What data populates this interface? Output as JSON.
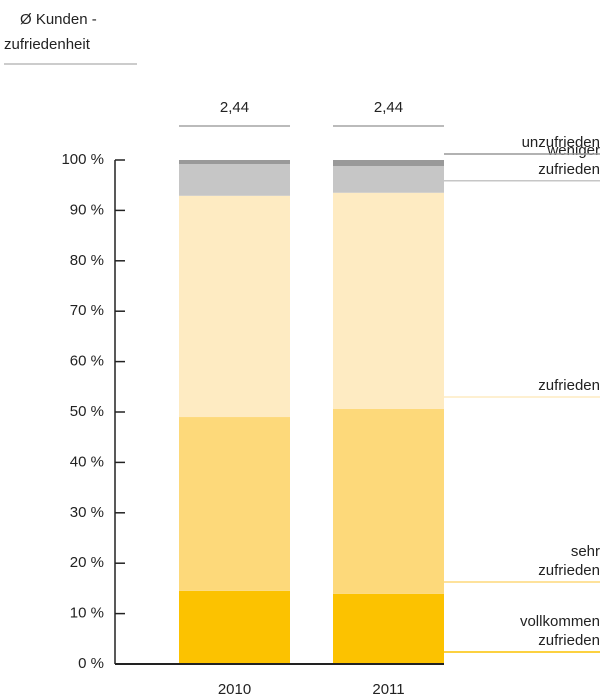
{
  "chart_data": {
    "type": "stacked_bar",
    "title_lines": [
      "Ø Kunden -",
      "zufriedenheit"
    ],
    "categories": [
      "2010",
      "2011"
    ],
    "averages": {
      "values": [
        2.44,
        2.44
      ],
      "value_labels": [
        "2,44",
        "2,44"
      ]
    },
    "series": [
      {
        "name": "vollkommen zufrieden",
        "color": "#fcc200",
        "values": [
          14.5,
          13.9
        ]
      },
      {
        "name": "sehr zufrieden",
        "color": "#fdd97a",
        "values": [
          34.5,
          36.7
        ]
      },
      {
        "name": "zufrieden",
        "color": "#feebc2",
        "values": [
          43.9,
          42.9
        ]
      },
      {
        "name": "weniger zufrieden",
        "color": "#c6c6c6",
        "values": [
          6.3,
          5.3
        ]
      },
      {
        "name": "unzufrieden",
        "color": "#999999",
        "values": [
          0.8,
          1.2
        ]
      }
    ],
    "ylim": [
      0,
      100
    ],
    "yticks": [
      {
        "value": 0,
        "label": "0 %"
      },
      {
        "value": 10,
        "label": "10 %"
      },
      {
        "value": 20,
        "label": "20 %"
      },
      {
        "value": 30,
        "label": "30 %"
      },
      {
        "value": 40,
        "label": "40 %"
      },
      {
        "value": 50,
        "label": "50 %"
      },
      {
        "value": 60,
        "label": "60 %"
      },
      {
        "value": 70,
        "label": "70 %"
      },
      {
        "value": 80,
        "label": "80 %"
      },
      {
        "value": 90,
        "label": "90 %"
      },
      {
        "value": 100,
        "label": "100 %"
      }
    ]
  }
}
